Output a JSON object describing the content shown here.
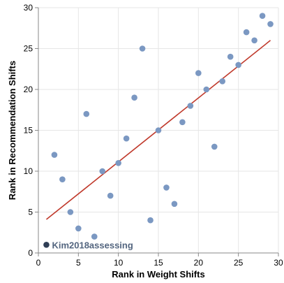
{
  "chart_data": {
    "type": "scatter",
    "title": "",
    "xlabel": "Rank in Weight Shifts",
    "ylabel": "Rank in Recommendation Shifts",
    "xlim": [
      0,
      30
    ],
    "ylim": [
      0,
      30
    ],
    "x_ticks": [
      0,
      5,
      10,
      15,
      20,
      25,
      30
    ],
    "y_ticks": [
      0,
      5,
      10,
      15,
      20,
      25,
      30
    ],
    "grid": true,
    "legend": "none",
    "series": [
      {
        "color": "#7b98c2",
        "points": [
          {
            "x": 2,
            "y": 12
          },
          {
            "x": 3,
            "y": 9
          },
          {
            "x": 4,
            "y": 5
          },
          {
            "x": 5,
            "y": 3
          },
          {
            "x": 6,
            "y": 17
          },
          {
            "x": 7,
            "y": 2
          },
          {
            "x": 8,
            "y": 10
          },
          {
            "x": 9,
            "y": 7
          },
          {
            "x": 10,
            "y": 11
          },
          {
            "x": 11,
            "y": 14
          },
          {
            "x": 12,
            "y": 19
          },
          {
            "x": 13,
            "y": 25
          },
          {
            "x": 14,
            "y": 4
          },
          {
            "x": 15,
            "y": 15
          },
          {
            "x": 16,
            "y": 8
          },
          {
            "x": 17,
            "y": 6
          },
          {
            "x": 18,
            "y": 16
          },
          {
            "x": 19,
            "y": 18
          },
          {
            "x": 20,
            "y": 22
          },
          {
            "x": 21,
            "y": 20
          },
          {
            "x": 22,
            "y": 13
          },
          {
            "x": 23,
            "y": 21
          },
          {
            "x": 24,
            "y": 24
          },
          {
            "x": 25,
            "y": 23
          },
          {
            "x": 26,
            "y": 27
          },
          {
            "x": 27,
            "y": 26
          },
          {
            "x": 28,
            "y": 29
          },
          {
            "x": 29,
            "y": 28
          }
        ]
      }
    ],
    "highlight": {
      "label": "Kim2018assessing",
      "x": 1,
      "y": 1,
      "color": "#2f3e55",
      "label_color": "#53657f"
    },
    "trendline": {
      "x_start": 1,
      "y_start": 4.1,
      "x_end": 29,
      "y_end": 26,
      "color": "#c0392b"
    }
  }
}
